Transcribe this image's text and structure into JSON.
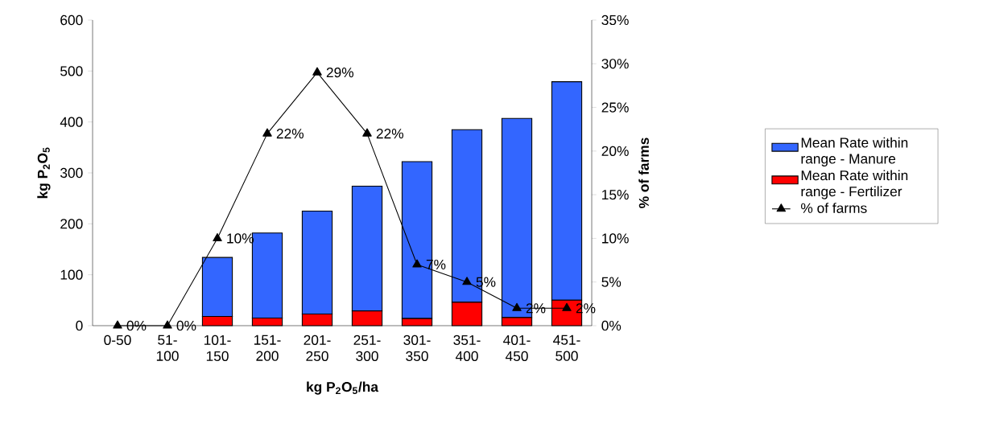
{
  "chart_data": {
    "type": "bar",
    "stacked": true,
    "categories": [
      "0-50",
      "51-100",
      "101-150",
      "151-200",
      "201-250",
      "251-300",
      "301-350",
      "351-400",
      "401-450",
      "451-500"
    ],
    "xlabel": "kg P$_{2}$O$_{5}$/ha",
    "ylabel": "kg P$_{2}$O$_{5}$",
    "y2label": "% of farms",
    "ylim": [
      0,
      600
    ],
    "yticks": [
      0,
      100,
      200,
      300,
      400,
      500,
      600
    ],
    "y2lim": [
      0,
      35
    ],
    "y2ticks": [
      {
        "value": 0,
        "label": "0%"
      },
      {
        "value": 5,
        "label": "5%"
      },
      {
        "value": 10,
        "label": "10%"
      },
      {
        "value": 15,
        "label": "15%"
      },
      {
        "value": 20,
        "label": "20%"
      },
      {
        "value": 25,
        "label": "25%"
      },
      {
        "value": 30,
        "label": "30%"
      },
      {
        "value": 35,
        "label": "35%"
      }
    ],
    "legend": "right",
    "grid": false,
    "series": [
      {
        "name": "Mean Rate within range - Fertilizer",
        "color": "#ff0000",
        "values": [
          0,
          0,
          18,
          15,
          23,
          29,
          14,
          46,
          16,
          50
        ]
      },
      {
        "name": "Mean Rate within range - Manure",
        "color": "#3366ff",
        "values": [
          0,
          0,
          116,
          167,
          202,
          245,
          308,
          339,
          391,
          429
        ]
      },
      {
        "name": "% of farms",
        "type": "line",
        "axis": "y2",
        "color": "#000000",
        "marker": "triangle",
        "line_style": "solid",
        "values": [
          0,
          0,
          10,
          22,
          29,
          22,
          7,
          5,
          2,
          2
        ],
        "value_labels": [
          "0%",
          "0%",
          "10%",
          "22%",
          "29%",
          "22%",
          "7%",
          "5%",
          "2%",
          "2%"
        ]
      }
    ]
  }
}
